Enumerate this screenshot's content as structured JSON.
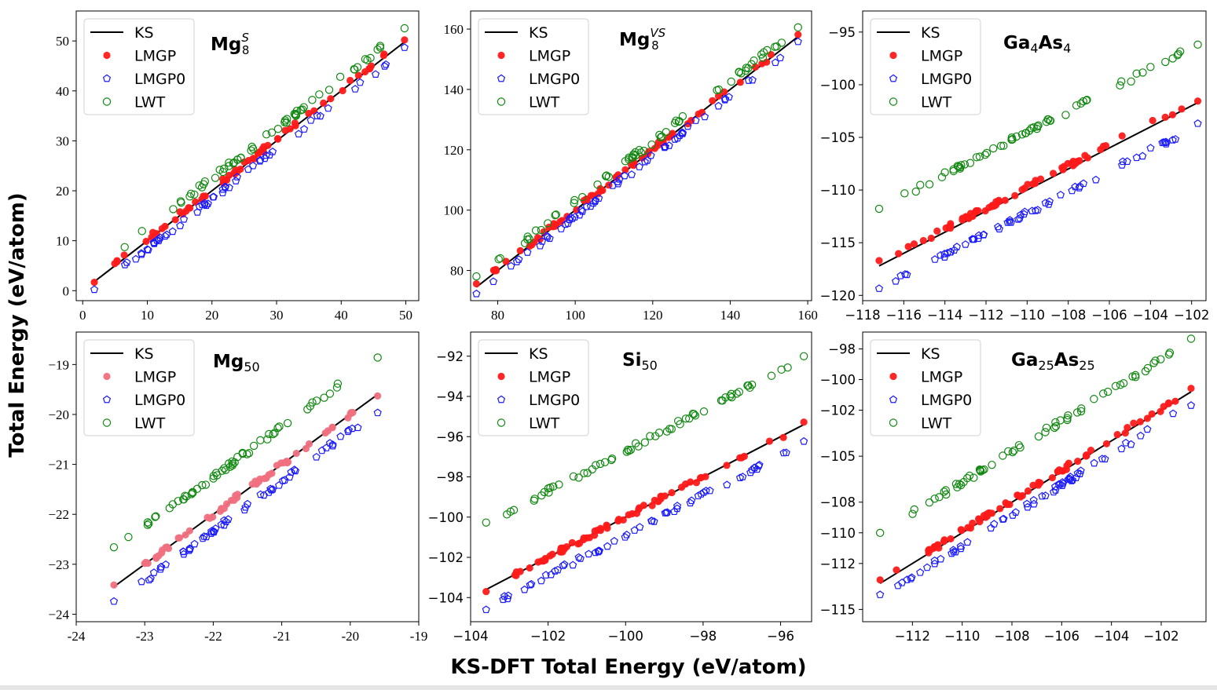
{
  "figure": {
    "ylabel": "Total Energy (eV/atom)",
    "xlabel": "KS-DFT Total Energy (eV/atom)"
  },
  "legend_labels": [
    "KS",
    "LMGP",
    "LMGP0",
    "LWT"
  ],
  "colors": {
    "KS": "#000000",
    "LMGP": "#ff1a1a",
    "LMGP0": "#1a1aff",
    "LWT": "#118811",
    "LMGP_light": "#f07080"
  },
  "chart_data": [
    {
      "type": "scatter",
      "title": {
        "base": "Mg",
        "sub": "8",
        "sup": "S"
      },
      "xlim": [
        -1,
        52
      ],
      "ylim": [
        -2,
        56
      ],
      "xticks": [
        0,
        10,
        20,
        30,
        40,
        50
      ],
      "yticks": [
        0,
        10,
        20,
        30,
        40,
        50
      ],
      "xtick_labels": [
        "0",
        "10",
        "20",
        "30",
        "40",
        "50"
      ],
      "ytick_labels": [
        "0",
        "10",
        "20",
        "30",
        "40",
        "50"
      ],
      "tick_font": "serif",
      "legend": "top-left",
      "series": [
        {
          "name": "KS",
          "kind": "line",
          "points": [
            [
              1.8,
              1.8
            ],
            [
              49.8,
              49.8
            ]
          ]
        },
        {
          "name": "LMGP",
          "kind": "filled-circle",
          "color": "#ff1a1a",
          "x_range": [
            1.8,
            49.8
          ],
          "offset": 0.3,
          "n": 62
        },
        {
          "name": "LMGP0",
          "kind": "pentagon",
          "color": "#1a1aff",
          "x_range": [
            1.8,
            49.8
          ],
          "offset": -1.6,
          "n": 58
        },
        {
          "name": "LWT",
          "kind": "open-circle",
          "color": "#118811",
          "x_range": [
            6.5,
            49.8
          ],
          "offset": 2.5,
          "n": 58
        }
      ]
    },
    {
      "type": "scatter",
      "title": {
        "base": "Mg",
        "sub": "8",
        "sup": "VS"
      },
      "xlim": [
        73,
        161
      ],
      "ylim": [
        70,
        166
      ],
      "xticks": [
        80,
        100,
        120,
        140,
        160
      ],
      "yticks": [
        80,
        100,
        120,
        140,
        160
      ],
      "xtick_labels": [
        "80",
        "100",
        "120",
        "140",
        "160"
      ],
      "ytick_labels": [
        "80",
        "100",
        "120",
        "140",
        "160"
      ],
      "tick_font": "serif",
      "legend": "top-left",
      "series": [
        {
          "name": "KS",
          "kind": "line",
          "points": [
            [
              74.5,
              74.5
            ],
            [
              157.5,
              157.5
            ]
          ]
        },
        {
          "name": "LMGP",
          "kind": "filled-circle",
          "color": "#ff1a1a",
          "x_range": [
            74.5,
            157.5
          ],
          "offset": 0.3,
          "n": 66
        },
        {
          "name": "LMGP0",
          "kind": "pentagon",
          "color": "#1a1aff",
          "x_range": [
            74.5,
            157.5
          ],
          "offset": -2.0,
          "n": 60
        },
        {
          "name": "LWT",
          "kind": "open-circle",
          "color": "#118811",
          "x_range": [
            74.5,
            157.5
          ],
          "offset": 2.8,
          "n": 60
        }
      ]
    },
    {
      "type": "scatter",
      "title": {
        "base": "Ga",
        "sub": "4",
        "base2": "As",
        "sub2": "4"
      },
      "xlim": [
        -118,
        -101.3
      ],
      "ylim": [
        -120.5,
        -93
      ],
      "xticks": [
        -118,
        -116,
        -114,
        -112,
        -110,
        -108,
        -106,
        -104,
        -102
      ],
      "yticks": [
        -120,
        -115,
        -110,
        -105,
        -100,
        -95
      ],
      "xtick_labels": [
        "−118",
        "−116",
        "−114",
        "−112",
        "−110",
        "−108",
        "−106",
        "−104",
        "−102"
      ],
      "ytick_labels": [
        "−120",
        "−115",
        "−110",
        "−105",
        "−100",
        "−95"
      ],
      "tick_font": "sans",
      "legend": "top-left",
      "series": [
        {
          "name": "KS",
          "kind": "line",
          "points": [
            [
              -117.2,
              -117.2
            ],
            [
              -101.7,
              -101.7
            ]
          ]
        },
        {
          "name": "LMGP",
          "kind": "filled-circle",
          "color": "#ff1a1a",
          "x_range": [
            -117.2,
            -101.7
          ],
          "offset": 0.3,
          "n": 70
        },
        {
          "name": "LMGP0",
          "kind": "pentagon",
          "color": "#1a1aff",
          "x_range": [
            -117.2,
            -101.7
          ],
          "offset": -2.2,
          "n": 60
        },
        {
          "name": "LWT",
          "kind": "open-circle",
          "color": "#118811",
          "x_range": [
            -117.2,
            -101.7
          ],
          "offset": 5.5,
          "n": 60
        }
      ]
    },
    {
      "type": "scatter",
      "title": {
        "base": "Mg",
        "sub": "50"
      },
      "xlim": [
        -24,
        -19
      ],
      "ylim": [
        -24.15,
        -18.35
      ],
      "xticks": [
        -24,
        -23,
        -22,
        -21,
        -20,
        -19
      ],
      "yticks": [
        -24,
        -23,
        -22,
        -21,
        -20,
        -19
      ],
      "xtick_labels": [
        "-24",
        "-23",
        "-22",
        "-21",
        "-20",
        "-19"
      ],
      "ytick_labels": [
        "−24",
        "−23",
        "−22",
        "−21",
        "−20",
        "−19"
      ],
      "tick_font": "serif",
      "legend": "top-left",
      "series": [
        {
          "name": "KS",
          "kind": "line",
          "points": [
            [
              -23.45,
              -23.45
            ],
            [
              -19.6,
              -19.6
            ]
          ]
        },
        {
          "name": "LMGP",
          "kind": "filled-circle",
          "color": "#f07080",
          "x_range": [
            -23.45,
            -19.6
          ],
          "offset": 0.0,
          "n": 60
        },
        {
          "name": "LMGP0",
          "kind": "pentagon",
          "color": "#1a1aff",
          "x_range": [
            -23.45,
            -19.6
          ],
          "offset": -0.33,
          "n": 58
        },
        {
          "name": "LWT",
          "kind": "open-circle",
          "color": "#118811",
          "x_range": [
            -23.45,
            -19.6
          ],
          "offset": 0.75,
          "n": 56
        }
      ]
    },
    {
      "type": "scatter",
      "title": {
        "base": "Si",
        "sub": "50"
      },
      "xlim": [
        -104,
        -95.2
      ],
      "ylim": [
        -105.2,
        -90.8
      ],
      "xticks": [
        -104,
        -102,
        -100,
        -98,
        -96
      ],
      "yticks": [
        -104,
        -102,
        -100,
        -98,
        -96,
        -94,
        -92
      ],
      "xtick_labels": [
        "−104",
        "−102",
        "−100",
        "−98",
        "−96"
      ],
      "ytick_labels": [
        "−104",
        "−102",
        "−100",
        "−98",
        "−96",
        "−94",
        "−92"
      ],
      "tick_font": "sans",
      "legend": "top-left",
      "series": [
        {
          "name": "KS",
          "kind": "line",
          "points": [
            [
              -103.6,
              -103.6
            ],
            [
              -95.4,
              -95.4
            ]
          ]
        },
        {
          "name": "LMGP",
          "kind": "filled-circle",
          "color": "#ff1a1a",
          "x_range": [
            -103.6,
            -95.4
          ],
          "offset": 0.0,
          "n": 68
        },
        {
          "name": "LMGP0",
          "kind": "pentagon",
          "color": "#1a1aff",
          "x_range": [
            -103.6,
            -95.4
          ],
          "offset": -0.9,
          "n": 58
        },
        {
          "name": "LWT",
          "kind": "open-circle",
          "color": "#118811",
          "x_range": [
            -103.6,
            -95.4
          ],
          "offset": 3.3,
          "n": 60
        }
      ]
    },
    {
      "type": "scatter",
      "title": {
        "base": "Ga",
        "sub": "25",
        "base2": "As",
        "sub2": "25"
      },
      "xlim": [
        -114,
        -100.2
      ],
      "ylim": [
        -115.8,
        -96.9
      ],
      "xticks": [
        -112,
        -110,
        -108,
        -106,
        -104,
        -102
      ],
      "yticks": [
        -115,
        -112,
        -110,
        -108,
        -105,
        -102,
        -100,
        -98
      ],
      "xtick_labels": [
        "−112",
        "−110",
        "−108",
        "−106",
        "−104",
        "−102"
      ],
      "ytick_labels": [
        "−115",
        "−112",
        "−110",
        "−108",
        "−105",
        "−102",
        "−100",
        "−98"
      ],
      "tick_font": "sans",
      "legend": "top-left",
      "series": [
        {
          "name": "KS",
          "kind": "line",
          "points": [
            [
              -113.3,
              -113.3
            ],
            [
              -100.8,
              -100.8
            ]
          ]
        },
        {
          "name": "LMGP",
          "kind": "filled-circle",
          "color": "#ff1a1a",
          "x_range": [
            -113.3,
            -100.8
          ],
          "offset": 0.1,
          "n": 70
        },
        {
          "name": "LMGP0",
          "kind": "pentagon",
          "color": "#1a1aff",
          "x_range": [
            -113.3,
            -100.8
          ],
          "offset": -0.85,
          "n": 58
        },
        {
          "name": "LWT",
          "kind": "open-circle",
          "color": "#118811",
          "x_range": [
            -113.3,
            -100.8
          ],
          "offset": 3.3,
          "n": 60
        }
      ]
    }
  ]
}
